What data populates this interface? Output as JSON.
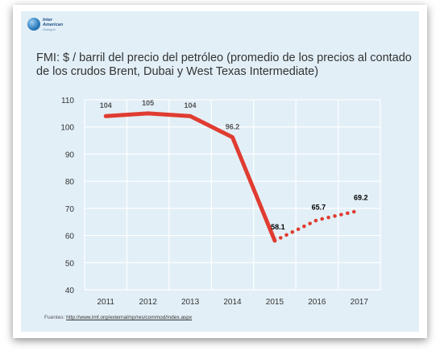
{
  "logo": {
    "line1": "Inter",
    "line2": "American",
    "line3": "Dialogue"
  },
  "title": "FMI: $ / barril del precio del petróleo (promedio de los precios al contado de los crudos Brent, Dubai y West Texas Intermediate)",
  "source": {
    "label": "Fuentes:",
    "url": "http://www.imf.org/external/np/res/commod/index.aspx"
  },
  "chart_data": {
    "type": "line",
    "title": "FMI: $ / barril del precio del petróleo (promedio de los precios al contado de los crudos Brent, Dubai y West Texas Intermediate)",
    "x": [
      "2011",
      "2012",
      "2013",
      "2014",
      "2015",
      "2016",
      "2017"
    ],
    "series": [
      {
        "values": [
          104,
          105,
          104,
          96.2,
          58.1,
          65.7,
          69.2
        ],
        "labels": [
          "104",
          "105",
          "104",
          "96.2",
          "58.1",
          "65.7",
          "69.2"
        ],
        "style_note": "solid 2011-2015, dotted projection 2015-2017",
        "color": "#e03c31"
      }
    ],
    "ylim": [
      40,
      110
    ],
    "yticks": [
      40,
      50,
      60,
      70,
      80,
      90,
      100,
      110
    ],
    "grid": true,
    "xlabel": "",
    "ylabel": ""
  },
  "colors": {
    "background": "#e2eff7",
    "line": "#e03c31",
    "grid": "#ffffff"
  }
}
